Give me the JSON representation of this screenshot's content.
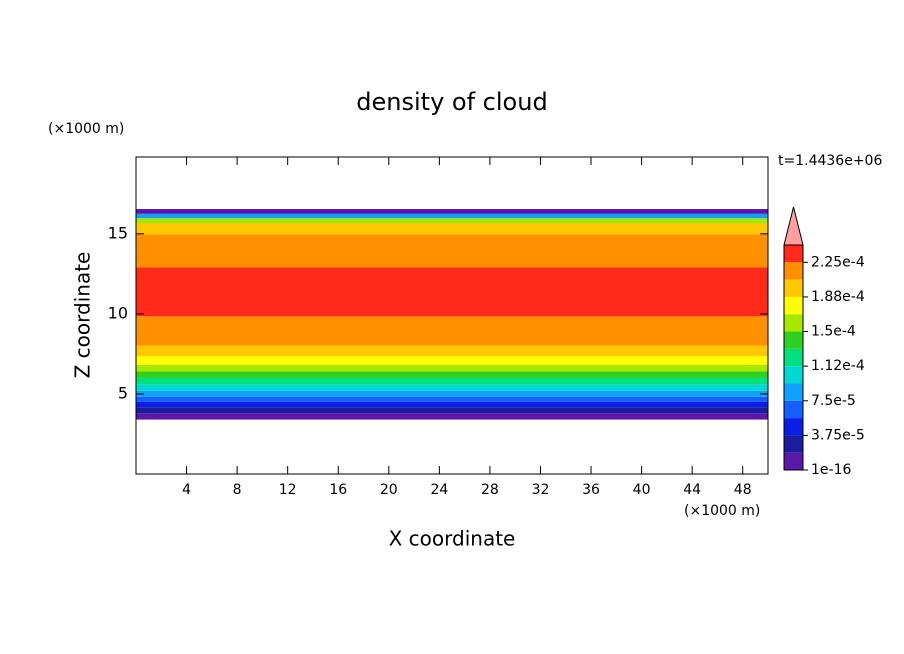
{
  "chart_data": {
    "type": "contour",
    "title": "density of cloud",
    "x_label": "X coordinate",
    "y_label": "Z coordinate",
    "x_unit": "(×1000 m)",
    "y_unit": "(×1000 m)",
    "time_label": "t=1.4436e+06",
    "xlim": [
      0,
      50
    ],
    "ylim": [
      0,
      19.8
    ],
    "xticks": [
      4,
      8,
      12,
      16,
      20,
      24,
      28,
      32,
      36,
      40,
      44,
      48
    ],
    "yticks": [
      5,
      10,
      15
    ],
    "profile": {
      "z": [
        3.6,
        4.0,
        4.35,
        4.65,
        5.0,
        5.4,
        5.8,
        6.2,
        6.6,
        7.05,
        7.65,
        8.4,
        11.3,
        14.5,
        15.45,
        15.85,
        16.1,
        16.4
      ],
      "values": [
        1e-05,
        2.5e-05,
        4.5e-05,
        6.5e-05,
        8.5e-05,
        0.0001,
        0.00012,
        0.00014,
        0.000155,
        0.000175,
        0.000195,
        0.000215,
        0.000235,
        0.000215,
        0.000195,
        0.00015,
        8e-05,
        1e-05
      ]
    },
    "levels": [
      1e-16,
      1.875e-05,
      3.75e-05,
      5.625e-05,
      7.5e-05,
      9.375e-05,
      0.0001125,
      0.00013125,
      0.00015,
      0.00016875,
      0.0001875,
      0.00020625,
      0.000225,
      0.00024375
    ],
    "colors": [
      "#5a18a8",
      "#1c1ca0",
      "#0a1ee6",
      "#1460ff",
      "#10a0ff",
      "#00d8d0",
      "#00e080",
      "#30d020",
      "#a8e800",
      "#ffff00",
      "#ffc800",
      "#ff9000",
      "#ff2a1a"
    ],
    "extend_color": "#ffa0a0",
    "colorbar_ticks": [
      {
        "value": 1e-16,
        "label": "1e-16"
      },
      {
        "value": 3.75e-05,
        "label": "3.75e-5"
      },
      {
        "value": 7.5e-05,
        "label": "7.5e-5"
      },
      {
        "value": 0.0001125,
        "label": "1.12e-4"
      },
      {
        "value": 0.00015,
        "label": "1.5e-4"
      },
      {
        "value": 0.0001875,
        "label": "1.88e-4"
      },
      {
        "value": 0.000225,
        "label": "2.25e-4"
      }
    ]
  }
}
